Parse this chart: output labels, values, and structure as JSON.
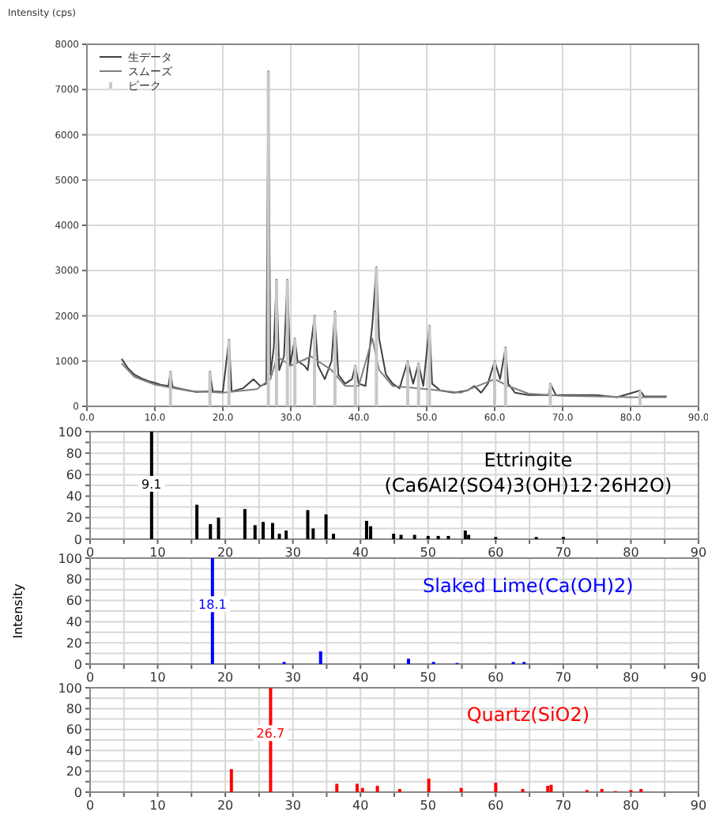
{
  "chart_data": [
    {
      "type": "line",
      "ylabel": "Intensity (cps)",
      "xlim": [
        0,
        90
      ],
      "ylim": [
        0,
        8000
      ],
      "xticks": [
        {
          "value": 0,
          "label": "0.0"
        },
        {
          "value": 10,
          "label": "10.0"
        },
        {
          "value": 20,
          "label": "20.0"
        },
        {
          "value": 30,
          "label": "30.0"
        },
        {
          "value": 40,
          "label": "40.0"
        },
        {
          "value": 50,
          "label": "50.0"
        },
        {
          "value": 60,
          "label": "60.0"
        },
        {
          "value": 70,
          "label": "70.0"
        },
        {
          "value": 80,
          "label": "80.0"
        },
        {
          "value": 90,
          "label": "90.0"
        }
      ],
      "yticks": [
        0,
        1000,
        2000,
        3000,
        4000,
        5000,
        6000,
        7000,
        8000
      ],
      "grid": true,
      "legend": "top left",
      "series": [
        {
          "name": "生データ",
          "color": "#404040",
          "x": [
            5.1,
            6,
            7,
            8,
            9,
            10,
            11,
            12,
            12.3,
            12.6,
            14,
            16,
            18,
            18.1,
            18.5,
            20,
            20.9,
            21.3,
            23,
            24.5,
            25.5,
            26.4,
            26.7,
            27,
            27.5,
            27.9,
            28.3,
            29,
            29.5,
            29.9,
            30.6,
            31,
            32,
            32.5,
            33.5,
            34,
            35,
            36,
            36.5,
            37,
            38,
            39,
            39.5,
            40,
            41,
            42,
            42.6,
            43,
            44,
            45,
            46,
            47.2,
            48,
            48.8,
            49.5,
            50.4,
            50.8,
            52,
            54,
            56,
            57,
            58,
            59,
            60,
            60.8,
            61.6,
            62,
            63,
            65,
            68,
            68.2,
            69,
            72,
            75,
            78,
            81.4,
            82,
            85.3
          ],
          "values": [
            1050,
            850,
            700,
            620,
            560,
            520,
            470,
            450,
            770,
            430,
            380,
            320,
            330,
            770,
            330,
            320,
            1470,
            330,
            400,
            600,
            450,
            500,
            7400,
            700,
            1300,
            2800,
            800,
            1100,
            2800,
            900,
            1500,
            1000,
            900,
            800,
            2000,
            900,
            600,
            1000,
            2100,
            700,
            500,
            600,
            900,
            500,
            450,
            1800,
            3080,
            1500,
            700,
            500,
            400,
            1000,
            500,
            950,
            450,
            1780,
            500,
            350,
            300,
            350,
            450,
            300,
            500,
            1000,
            600,
            1300,
            500,
            300,
            250,
            250,
            500,
            250,
            250,
            250,
            200,
            350,
            220,
            220
          ]
        },
        {
          "name": "スムーズ",
          "color": "#808080",
          "x": [
            5.1,
            7,
            10,
            15,
            20,
            25,
            27,
            28,
            30,
            33,
            36,
            38,
            40,
            42,
            43,
            45,
            50,
            55,
            60,
            62,
            65,
            70,
            75,
            80,
            85.3
          ],
          "values": [
            950,
            650,
            480,
            340,
            300,
            380,
            600,
            1100,
            900,
            1100,
            800,
            450,
            450,
            1500,
            800,
            450,
            380,
            300,
            600,
            450,
            280,
            230,
            220,
            200,
            200
          ]
        },
        {
          "name": "ピーク",
          "type": "bar",
          "color": "#c8c8c8",
          "x": [
            12.3,
            18.1,
            20.9,
            26.7,
            27.9,
            29.5,
            30.6,
            33.5,
            36.5,
            39.5,
            42.6,
            47.2,
            48.8,
            50.4,
            60,
            61.6,
            68.2,
            81.4
          ],
          "values": [
            770,
            770,
            1470,
            7400,
            2800,
            2800,
            1500,
            2000,
            2100,
            900,
            3080,
            1000,
            950,
            1780,
            1000,
            1300,
            500,
            350
          ]
        }
      ]
    },
    {
      "type": "bar",
      "xlim": [
        0,
        90
      ],
      "ylim": [
        0,
        100
      ],
      "xticks": [
        0,
        {
          "value": 5,
          "label": null
        },
        10,
        {
          "value": 15,
          "label": null
        },
        20,
        {
          "value": 25,
          "label": null
        },
        30,
        {
          "value": 35,
          "label": null
        },
        40,
        {
          "value": 45,
          "label": null
        },
        50,
        {
          "value": 55,
          "label": null
        },
        60,
        {
          "value": 65,
          "label": null
        },
        70,
        {
          "value": 75,
          "label": null
        },
        80,
        {
          "value": 85,
          "label": null
        },
        90
      ],
      "yticks": [
        0,
        {
          "value": 10,
          "label": null
        },
        20,
        {
          "value": 30,
          "label": null
        },
        40,
        {
          "value": 50,
          "label": null
        },
        60,
        {
          "value": 70,
          "label": null
        },
        80,
        {
          "value": 90,
          "label": null
        },
        100
      ],
      "grid": true,
      "annotations": [
        {
          "text": "9.1",
          "x": 9.1,
          "y": 50
        },
        "Ettringite",
        "(Ca6Al2(SO4)3(OH)12·26H2O)"
      ],
      "series": [
        {
          "color": "#000000",
          "x": [
            9.1,
            15.8,
            17.8,
            19,
            22.9,
            24.4,
            25.6,
            27,
            28,
            29,
            32.2,
            33,
            34.9,
            36,
            40.9,
            41.5,
            44.9,
            46,
            48,
            50,
            51.5,
            53,
            55.5,
            56,
            60,
            66,
            70
          ],
          "values": [
            100,
            32,
            14,
            20,
            28,
            13,
            16,
            15,
            5,
            8,
            27,
            10,
            23,
            5,
            17,
            12,
            5,
            4,
            4,
            3,
            3,
            3,
            8,
            4,
            2,
            2,
            2
          ]
        }
      ]
    },
    {
      "type": "bar",
      "ylabel": "Intensity",
      "xlim": [
        0,
        90
      ],
      "ylim": [
        0,
        100
      ],
      "xticks": [
        0,
        {
          "value": 5,
          "label": null
        },
        10,
        {
          "value": 15,
          "label": null
        },
        20,
        {
          "value": 25,
          "label": null
        },
        30,
        {
          "value": 35,
          "label": null
        },
        40,
        {
          "value": 45,
          "label": null
        },
        50,
        {
          "value": 55,
          "label": null
        },
        60,
        {
          "value": 65,
          "label": null
        },
        70,
        {
          "value": 75,
          "label": null
        },
        80,
        {
          "value": 85,
          "label": null
        },
        90
      ],
      "yticks": [
        0,
        {
          "value": 10,
          "label": null
        },
        20,
        {
          "value": 30,
          "label": null
        },
        40,
        {
          "value": 50,
          "label": null
        },
        60,
        {
          "value": 70,
          "label": null
        },
        80,
        {
          "value": 90,
          "label": null
        },
        100
      ],
      "grid": true,
      "annotations": [
        {
          "text": "18.1",
          "x": 18.1,
          "y": 55
        },
        "Slaked Lime(Ca(OH)2)"
      ],
      "series": [
        {
          "color": "#0000ff",
          "x": [
            18.1,
            28.7,
            34.1,
            47.1,
            50.8,
            54.3,
            62.6,
            64.2
          ],
          "values": [
            100,
            2,
            12,
            5,
            2,
            1,
            2,
            2
          ]
        }
      ]
    },
    {
      "type": "bar",
      "xlim": [
        0,
        90
      ],
      "ylim": [
        0,
        100
      ],
      "xticks": [
        0,
        {
          "value": 5,
          "label": null
        },
        10,
        {
          "value": 15,
          "label": null
        },
        20,
        {
          "value": 25,
          "label": null
        },
        30,
        {
          "value": 35,
          "label": null
        },
        40,
        {
          "value": 45,
          "label": null
        },
        50,
        {
          "value": 55,
          "label": null
        },
        60,
        {
          "value": 65,
          "label": null
        },
        70,
        {
          "value": 75,
          "label": null
        },
        80,
        {
          "value": 85,
          "label": null
        },
        90
      ],
      "yticks": [
        0,
        {
          "value": 10,
          "label": null
        },
        20,
        {
          "value": 30,
          "label": null
        },
        40,
        {
          "value": 50,
          "label": null
        },
        60,
        {
          "value": 70,
          "label": null
        },
        80,
        {
          "value": 90,
          "label": null
        },
        100
      ],
      "grid": true,
      "annotations": [
        {
          "text": "26.7",
          "x": 26.7,
          "y": 55
        },
        "Quartz(SiO2)"
      ],
      "series": [
        {
          "color": "#ff0000",
          "x": [
            20.9,
            26.7,
            36.5,
            39.5,
            40.3,
            42.5,
            45.8,
            50.1,
            54.9,
            60,
            64,
            67.7,
            68.2,
            73.5,
            75.7,
            77.7,
            80,
            81.5
          ],
          "values": [
            22,
            100,
            8,
            8,
            4,
            6,
            3,
            13,
            4,
            9,
            3,
            6,
            7,
            2,
            3,
            1,
            2,
            3
          ]
        }
      ]
    }
  ]
}
